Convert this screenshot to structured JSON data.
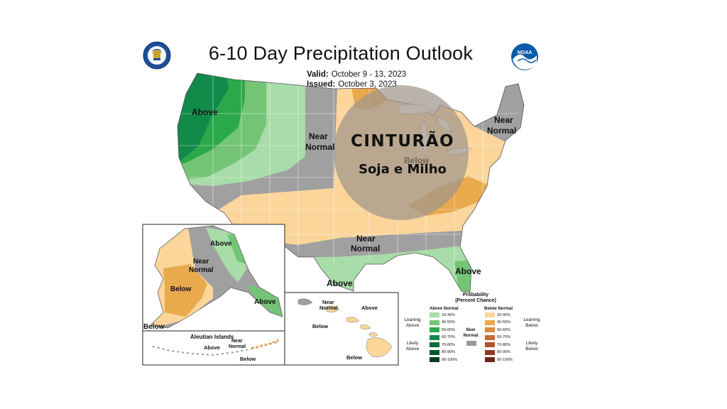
{
  "header": {
    "title": "6-10 Day Precipitation Outlook",
    "valid_label": "Valid:",
    "valid_value": "October 9 - 13, 2023",
    "issued_label": "Issued:",
    "issued_value": "October 3, 2023",
    "noaa_logo_text": "NOAA"
  },
  "overlay": {
    "title": "CINTURÃO",
    "subtitle": "Soja e Milho",
    "color": "#a0958a"
  },
  "regions": {
    "northwest": "Above",
    "central_near_1": "Near",
    "central_near_2": "Normal",
    "northeast_near_1": "Near",
    "northeast_near_2": "Normal",
    "south_near_1": "Near",
    "south_near_2": "Normal",
    "below_midwest": "Below",
    "texas": "Above",
    "florida": "Above"
  },
  "alaska": {
    "above": "Above",
    "near_1": "Near",
    "near_2": "Normal",
    "below": "Below",
    "panhandle_above": "Above",
    "corner_below": "Below"
  },
  "aleutian": {
    "title": "Aleutian Islands",
    "above": "Above",
    "near_1": "Near",
    "near_2": "Normal",
    "below": "Below"
  },
  "hawaii": {
    "near_1": "Near",
    "near_2": "Normal",
    "above": "Above",
    "below_1": "Below",
    "below_2": "Below"
  },
  "legend": {
    "title_1": "Probability",
    "title_2": "(Percent Chance)",
    "above_header": "Above Normal",
    "below_header": "Below Normal",
    "near_1": "Near",
    "near_2": "Normal",
    "leaning_above_1": "Leaning",
    "leaning_above_2": "Above",
    "likely_above_1": "Likely",
    "likely_above_2": "Above",
    "leaning_below_1": "Leaning",
    "leaning_below_2": "Below",
    "likely_below_1": "Likely",
    "likely_below_2": "Below",
    "above_items": [
      {
        "label": "33-40%",
        "color": "#a8dca8"
      },
      {
        "label": "40-50%",
        "color": "#74c476"
      },
      {
        "label": "50-60%",
        "color": "#2aa84a"
      },
      {
        "label": "60-70%",
        "color": "#118a4a"
      },
      {
        "label": "70-80%",
        "color": "#0a6e3a"
      },
      {
        "label": "80-90%",
        "color": "#06572e"
      },
      {
        "label": "90-100%",
        "color": "#033f20"
      }
    ],
    "below_items": [
      {
        "label": "33-40%",
        "color": "#fbd59a"
      },
      {
        "label": "40-50%",
        "color": "#e9a94d"
      },
      {
        "label": "50-60%",
        "color": "#dd8a3c"
      },
      {
        "label": "60-70%",
        "color": "#c76a34"
      },
      {
        "label": "70-80%",
        "color": "#b0502c"
      },
      {
        "label": "80-90%",
        "color": "#8f3a24"
      },
      {
        "label": "90-100%",
        "color": "#6a2818"
      }
    ],
    "near_color": "#999999"
  }
}
